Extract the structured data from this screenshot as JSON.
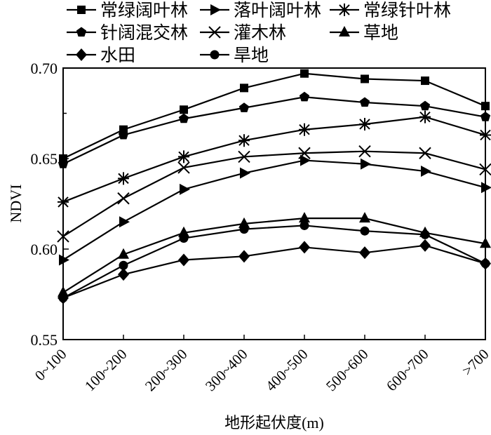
{
  "chart_data": {
    "type": "line",
    "title": "",
    "xlabel": "地形起伏度(m)",
    "ylabel": "NDVI",
    "ylim": [
      0.55,
      0.7
    ],
    "yticks": [
      "0.55",
      "0.60",
      "0.65",
      "0.70"
    ],
    "categories": [
      "0~100",
      "100~200",
      "200~300",
      "300~400",
      "400~500",
      "500~600",
      "600~700",
      ">700"
    ],
    "legend_position": "top",
    "series": [
      {
        "name": "常绿阔叶林",
        "marker": "square",
        "values": [
          0.65,
          0.666,
          0.677,
          0.689,
          0.697,
          0.694,
          0.693,
          0.679
        ]
      },
      {
        "name": "落叶阔叶林",
        "marker": "triangle-right",
        "values": [
          0.594,
          0.615,
          0.633,
          0.642,
          0.649,
          0.647,
          0.643,
          0.634
        ]
      },
      {
        "name": "常绿针叶林",
        "marker": "asterisk",
        "values": [
          0.626,
          0.639,
          0.651,
          0.66,
          0.666,
          0.669,
          0.673,
          0.663
        ]
      },
      {
        "name": "针阔混交林",
        "marker": "pentagon",
        "values": [
          0.647,
          0.663,
          0.672,
          0.678,
          0.684,
          0.681,
          0.679,
          0.673
        ]
      },
      {
        "name": "灌木林",
        "marker": "x",
        "values": [
          0.607,
          0.628,
          0.645,
          0.651,
          0.653,
          0.654,
          0.653,
          0.644
        ]
      },
      {
        "name": "草地",
        "marker": "triangle-up",
        "values": [
          0.576,
          0.597,
          0.609,
          0.614,
          0.617,
          0.617,
          0.609,
          0.603
        ]
      },
      {
        "name": "水田",
        "marker": "diamond",
        "values": [
          0.573,
          0.586,
          0.594,
          0.596,
          0.601,
          0.598,
          0.602,
          0.592
        ]
      },
      {
        "name": "旱地",
        "marker": "circle",
        "values": [
          0.573,
          0.591,
          0.606,
          0.611,
          0.613,
          0.61,
          0.608,
          0.592
        ]
      }
    ]
  }
}
